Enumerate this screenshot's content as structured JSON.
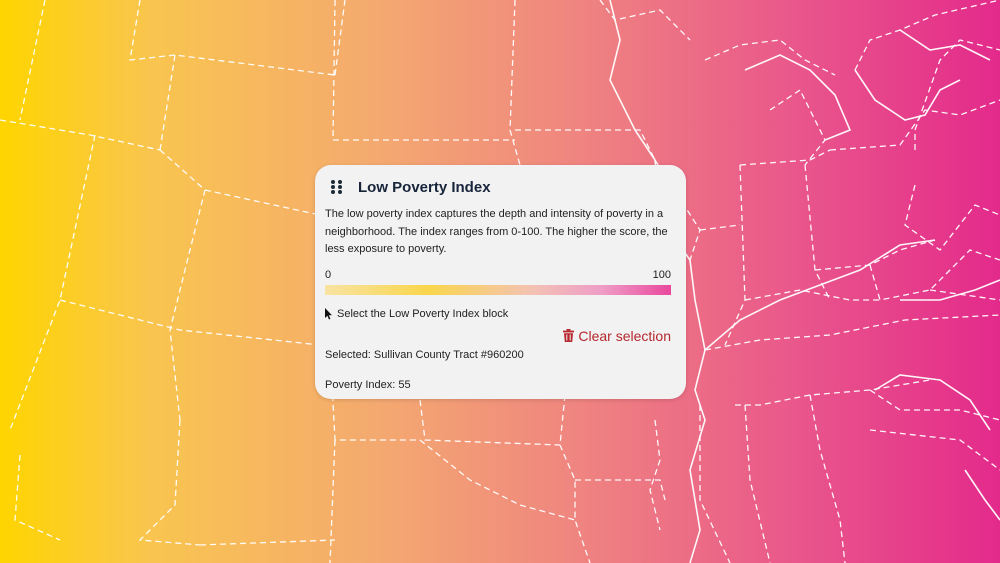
{
  "map": {
    "background_gradient": [
      "#fed500",
      "#f4a970",
      "#ef8480",
      "#e9568b",
      "#e32a8b"
    ],
    "boundary_color": "#ffffff"
  },
  "panel": {
    "title": "Low Poverty Index",
    "description": "The low poverty index captures the depth and intensity of poverty in a neighborhood. The index ranges from 0-100. The higher the score, the less exposure to poverty.",
    "scale": {
      "min_label": "0",
      "max_label": "100",
      "gradient_colors": [
        "#f8e3a2",
        "#f9d64c",
        "#f3c2b4",
        "#ef9dc7",
        "#e9489d"
      ]
    },
    "instruction": "Select the Low Poverty Index block",
    "clear_label": "Clear selection",
    "clear_color": "#b4282e",
    "selected_text": "Selected: Sullivan County Tract #960200",
    "index_text": "Poverty Index: 55"
  },
  "icons": {
    "drag": "drag-handle-icon",
    "cursor": "cursor-icon",
    "trash": "trash-icon"
  }
}
